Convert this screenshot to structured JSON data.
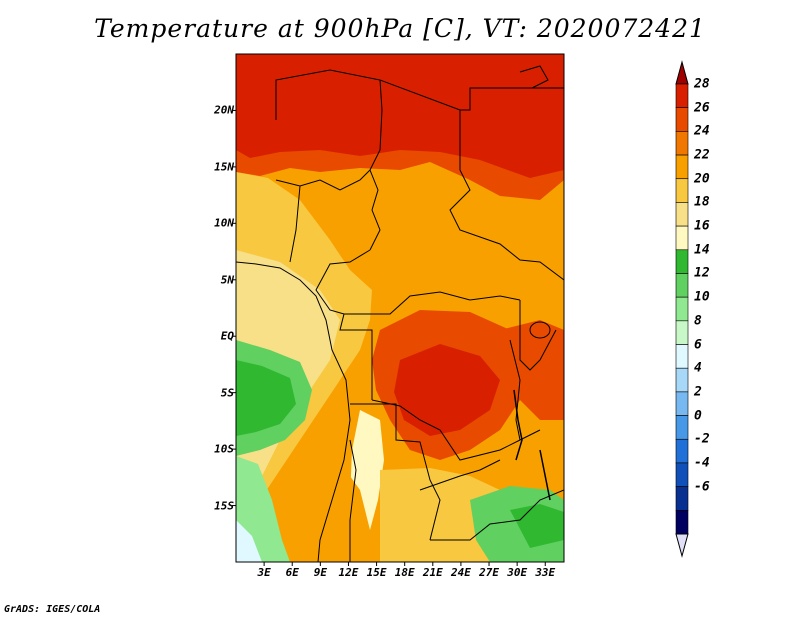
{
  "title": "Temperature at 900hPa [C], VT: 2020072421",
  "credit": "GrADS: IGES/COLA",
  "map": {
    "lon_range": [
      0,
      35
    ],
    "lat_range": [
      -20,
      25
    ],
    "y_ticks": [
      "20N",
      "15N",
      "10N",
      "5N",
      "EQ",
      "5S",
      "10S",
      "15S"
    ],
    "x_ticks": [
      "3E",
      "6E",
      "9E",
      "12E",
      "15E",
      "18E",
      "21E",
      "24E",
      "27E",
      "30E",
      "33E"
    ]
  },
  "colorbar": {
    "labels": [
      "28",
      "26",
      "24",
      "22",
      "20",
      "18",
      "16",
      "14",
      "12",
      "10",
      "8",
      "6",
      "4",
      "2",
      "0",
      "-2",
      "-4",
      "-6"
    ],
    "colors": [
      "#a00000",
      "#d82000",
      "#e84a00",
      "#f07800",
      "#f8a000",
      "#f8c840",
      "#f8e088",
      "#fff8c0",
      "#30b830",
      "#60d060",
      "#90e890",
      "#c8f8c8",
      "#e0f8ff",
      "#a8d8f8",
      "#78b8f0",
      "#4898e8",
      "#2070d8",
      "#1050b8",
      "#083090",
      "#000060",
      "#e0e0f8"
    ]
  }
}
